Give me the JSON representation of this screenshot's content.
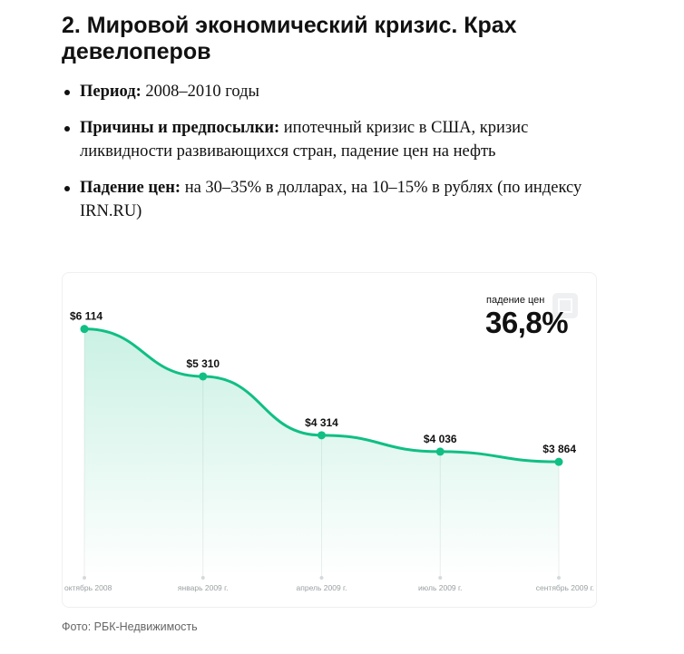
{
  "article": {
    "title": "2. Мировой экономический кризис. Крах девелоперов",
    "facts": [
      {
        "label": "Период:",
        "text": " 2008–2010 годы"
      },
      {
        "label": "Причины и предпосылки:",
        "text": " ипотечный кризис в США, кризис ликвидности развивающихся стран, падение цен на нефть"
      },
      {
        "label": "Падение цен:",
        "text": " на 30–35% в долларах, на 10–15% в рублях (по индексу IRN.RU)"
      }
    ]
  },
  "chart_data": {
    "type": "area",
    "categories": [
      "октябрь 2008",
      "январь 2009 г.",
      "апрель 2009 г.",
      "июль 2009 г.",
      "сентябрь 2009 г."
    ],
    "values": [
      6114,
      5310,
      4314,
      4036,
      3864
    ],
    "value_labels": [
      "$6 114",
      "$5 310",
      "$4 314",
      "$4 036",
      "$3 864"
    ],
    "ylim": [
      1900,
      6600
    ],
    "grid": false,
    "color": "#10bf84"
  },
  "highlight": {
    "caption": "падение цен",
    "value": "36,8%"
  },
  "credit": "Фото: РБК-Недвижимость",
  "icons": {
    "expand": "expand-icon"
  }
}
